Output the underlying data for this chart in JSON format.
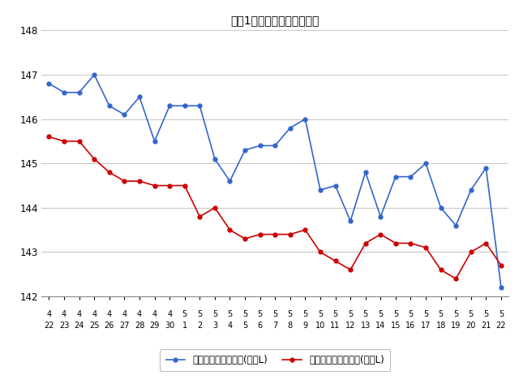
{
  "title": "最近1ヶ月のレギュラー価格",
  "xlabel_top": [
    "4",
    "4",
    "4",
    "4",
    "4",
    "4",
    "4",
    "4",
    "4",
    "5",
    "5",
    "5",
    "5",
    "5",
    "5",
    "5",
    "5",
    "5",
    "5",
    "5",
    "5",
    "5",
    "5",
    "5",
    "5",
    "5",
    "5",
    "5",
    "5",
    "5",
    "5"
  ],
  "xlabel_bottom": [
    "22",
    "23",
    "24",
    "25",
    "26",
    "27",
    "28",
    "29",
    "30",
    "1",
    "2",
    "3",
    "4",
    "5",
    "6",
    "7",
    "8",
    "9",
    "10",
    "11",
    "12",
    "13",
    "14",
    "15",
    "16",
    "17",
    "18",
    "19",
    "20",
    "21",
    "22"
  ],
  "blue_values": [
    146.8,
    146.6,
    146.6,
    147.0,
    146.3,
    146.1,
    146.5,
    145.5,
    146.3,
    146.3,
    146.3,
    145.1,
    144.6,
    145.3,
    145.4,
    145.4,
    145.8,
    146.0,
    144.4,
    144.5,
    143.7,
    144.8,
    143.8,
    144.7,
    144.7,
    145.0,
    144.0,
    143.6,
    144.4,
    144.9,
    142.2
  ],
  "red_values": [
    145.6,
    145.5,
    145.5,
    145.1,
    144.8,
    144.6,
    144.6,
    144.5,
    144.5,
    144.5,
    143.8,
    144.0,
    143.5,
    143.3,
    143.4,
    143.4,
    143.4,
    143.5,
    143.0,
    142.8,
    142.6,
    143.2,
    143.4,
    143.2,
    143.2,
    143.1,
    142.6,
    142.4,
    143.0,
    143.2,
    142.7
  ],
  "blue_color": "#3366CC",
  "red_color": "#CC0000",
  "ylim_min": 142,
  "ylim_max": 148,
  "yticks": [
    142,
    143,
    144,
    145,
    146,
    147,
    148
  ],
  "legend_blue": "レギュラー看板価格(円／L)",
  "legend_red": "レギュラー実売価格(円／L)",
  "bg_color": "#ffffff",
  "grid_color": "#c8c8c8"
}
